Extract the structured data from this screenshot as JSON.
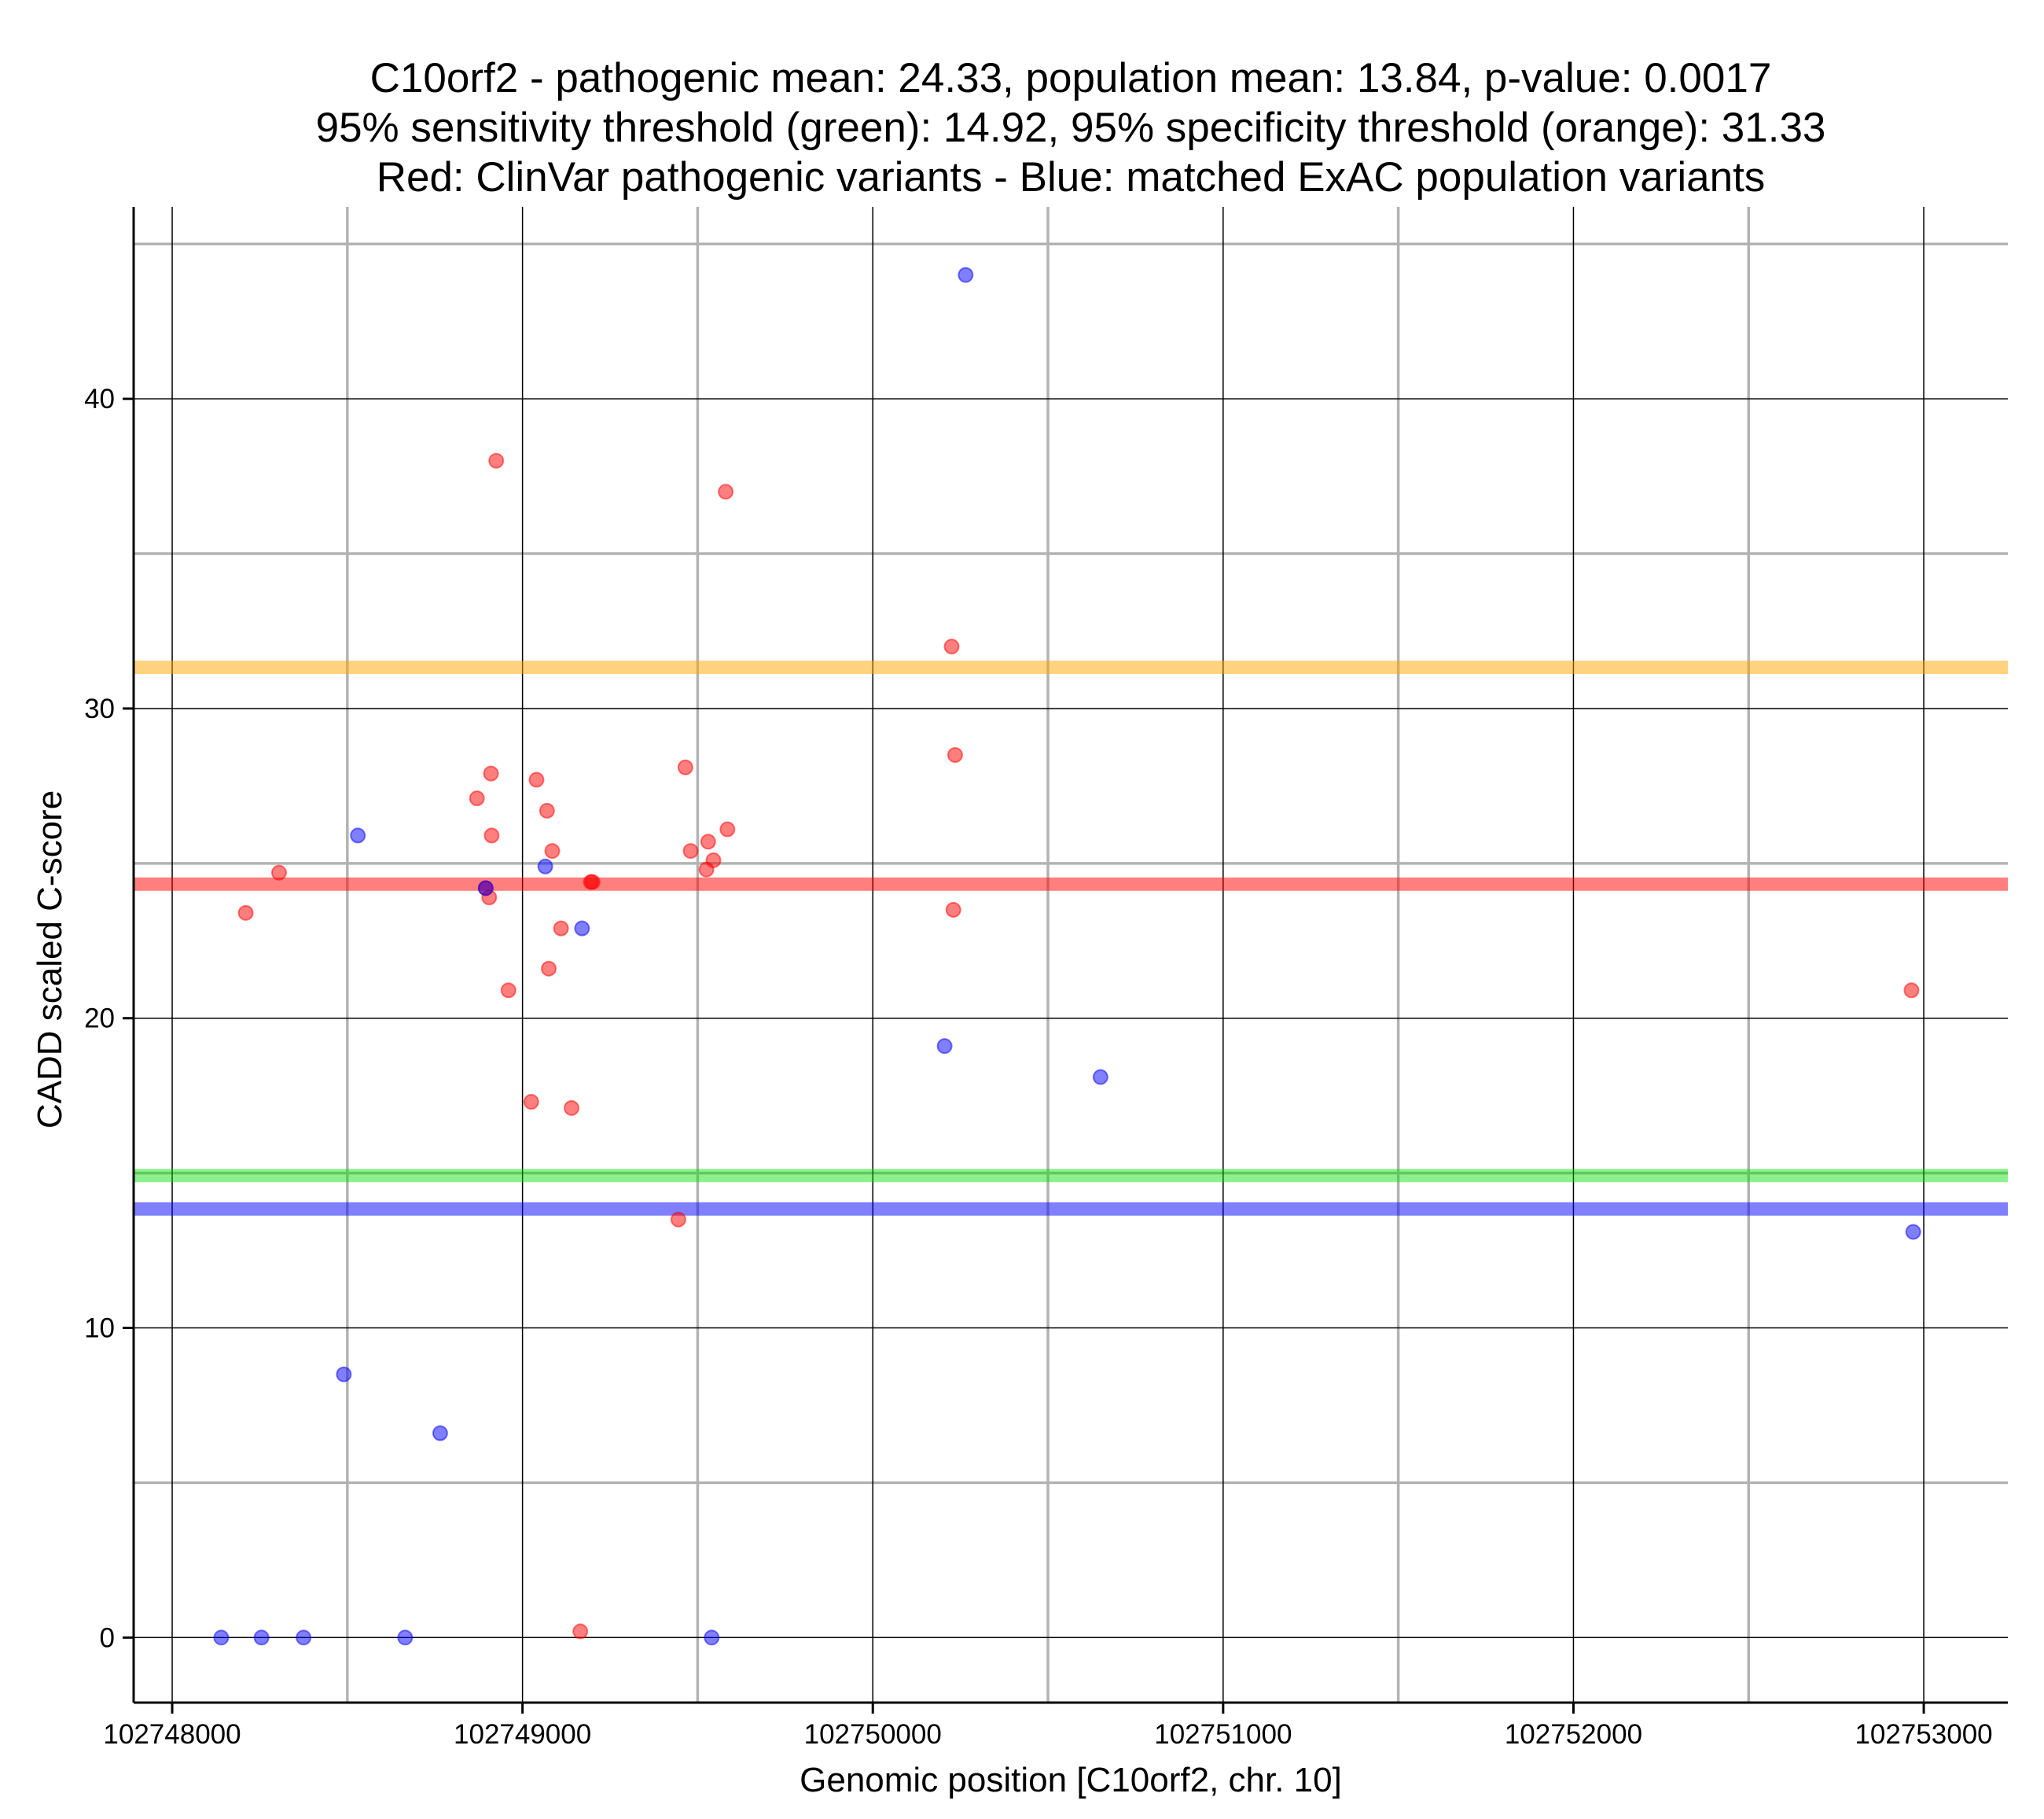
{
  "chart_data": {
    "type": "scatter",
    "title_lines": [
      "C10orf2 - pathogenic mean: 24.33, population mean: 13.84, p-value: 0.0017",
      "95% sensitivity threshold (green): 14.92, 95% specificity threshold (orange): 31.33",
      "Red: ClinVar pathogenic variants - Blue: matched ExAC population variants"
    ],
    "xlabel": "Genomic position [C10orf2, chr. 10]",
    "ylabel": "CADD scaled C-score",
    "xlim": [
      102747890,
      102753240
    ],
    "ylim": [
      -2.1,
      46.2
    ],
    "x_ticks": [
      102748000,
      102749000,
      102750000,
      102751000,
      102752000,
      102753000
    ],
    "x_tick_labels": [
      "102748000",
      "102749000",
      "102750000",
      "102751000",
      "102752000",
      "102753000"
    ],
    "x_minor_grid": [
      102748500,
      102749500,
      102750500,
      102751500,
      102752500
    ],
    "y_ticks": [
      0,
      10,
      20,
      30,
      40
    ],
    "y_tick_labels": [
      "0",
      "10",
      "20",
      "30",
      "40"
    ],
    "y_minor_grid": [
      5,
      15,
      25,
      35,
      45
    ],
    "grid": true,
    "reference_lines": [
      {
        "name": "specificity-threshold",
        "label": "95% specificity threshold",
        "y": 31.33,
        "color": "#ffa500",
        "opacity": 0.5
      },
      {
        "name": "pathogenic-mean",
        "label": "pathogenic mean",
        "y": 24.33,
        "color": "#ff0000",
        "opacity": 0.5
      },
      {
        "name": "sensitivity-threshold",
        "label": "95% sensitivity threshold",
        "y": 14.92,
        "color": "#00e000",
        "opacity": 0.45
      },
      {
        "name": "population-mean",
        "label": "population mean",
        "y": 13.84,
        "color": "#0000ff",
        "opacity": 0.5
      }
    ],
    "series": [
      {
        "name": "ClinVar pathogenic variants",
        "color": "#ff0000",
        "points": [
          {
            "x": 102748210,
            "y": 23.4
          },
          {
            "x": 102748305,
            "y": 24.7
          },
          {
            "x": 102748870,
            "y": 27.1
          },
          {
            "x": 102748895,
            "y": 24.2
          },
          {
            "x": 102748905,
            "y": 23.9
          },
          {
            "x": 102748910,
            "y": 27.9
          },
          {
            "x": 102748912,
            "y": 25.9
          },
          {
            "x": 102748925,
            "y": 38.0
          },
          {
            "x": 102748960,
            "y": 20.9
          },
          {
            "x": 102749025,
            "y": 17.3
          },
          {
            "x": 102749040,
            "y": 27.7
          },
          {
            "x": 102749070,
            "y": 26.7
          },
          {
            "x": 102749075,
            "y": 21.6
          },
          {
            "x": 102749085,
            "y": 25.4
          },
          {
            "x": 102749110,
            "y": 22.9
          },
          {
            "x": 102749140,
            "y": 17.1
          },
          {
            "x": 102749165,
            "y": 0.2
          },
          {
            "x": 102749195,
            "y": 24.4
          },
          {
            "x": 102749200,
            "y": 24.4
          },
          {
            "x": 102749445,
            "y": 13.5
          },
          {
            "x": 102749465,
            "y": 28.1
          },
          {
            "x": 102749480,
            "y": 25.4
          },
          {
            "x": 102749525,
            "y": 24.8
          },
          {
            "x": 102749530,
            "y": 25.7
          },
          {
            "x": 102749545,
            "y": 25.1
          },
          {
            "x": 102749580,
            "y": 37.0
          },
          {
            "x": 102749585,
            "y": 26.1
          },
          {
            "x": 102750225,
            "y": 32.0
          },
          {
            "x": 102750230,
            "y": 23.5
          },
          {
            "x": 102750235,
            "y": 28.5
          },
          {
            "x": 102752965,
            "y": 20.9
          }
        ]
      },
      {
        "name": "matched ExAC population variants",
        "color": "#0000ff",
        "points": [
          {
            "x": 102748140,
            "y": 0.0
          },
          {
            "x": 102748255,
            "y": 0.0
          },
          {
            "x": 102748375,
            "y": 0.0
          },
          {
            "x": 102748490,
            "y": 8.5
          },
          {
            "x": 102748530,
            "y": 25.9
          },
          {
            "x": 102748665,
            "y": 0.0
          },
          {
            "x": 102748765,
            "y": 6.6
          },
          {
            "x": 102748895,
            "y": 24.2
          },
          {
            "x": 102749065,
            "y": 24.9
          },
          {
            "x": 102749170,
            "y": 22.9
          },
          {
            "x": 102749540,
            "y": 0.0
          },
          {
            "x": 102750205,
            "y": 19.1
          },
          {
            "x": 102750265,
            "y": 44.0
          },
          {
            "x": 102750650,
            "y": 18.1
          },
          {
            "x": 102752970,
            "y": 13.1
          }
        ]
      }
    ]
  }
}
